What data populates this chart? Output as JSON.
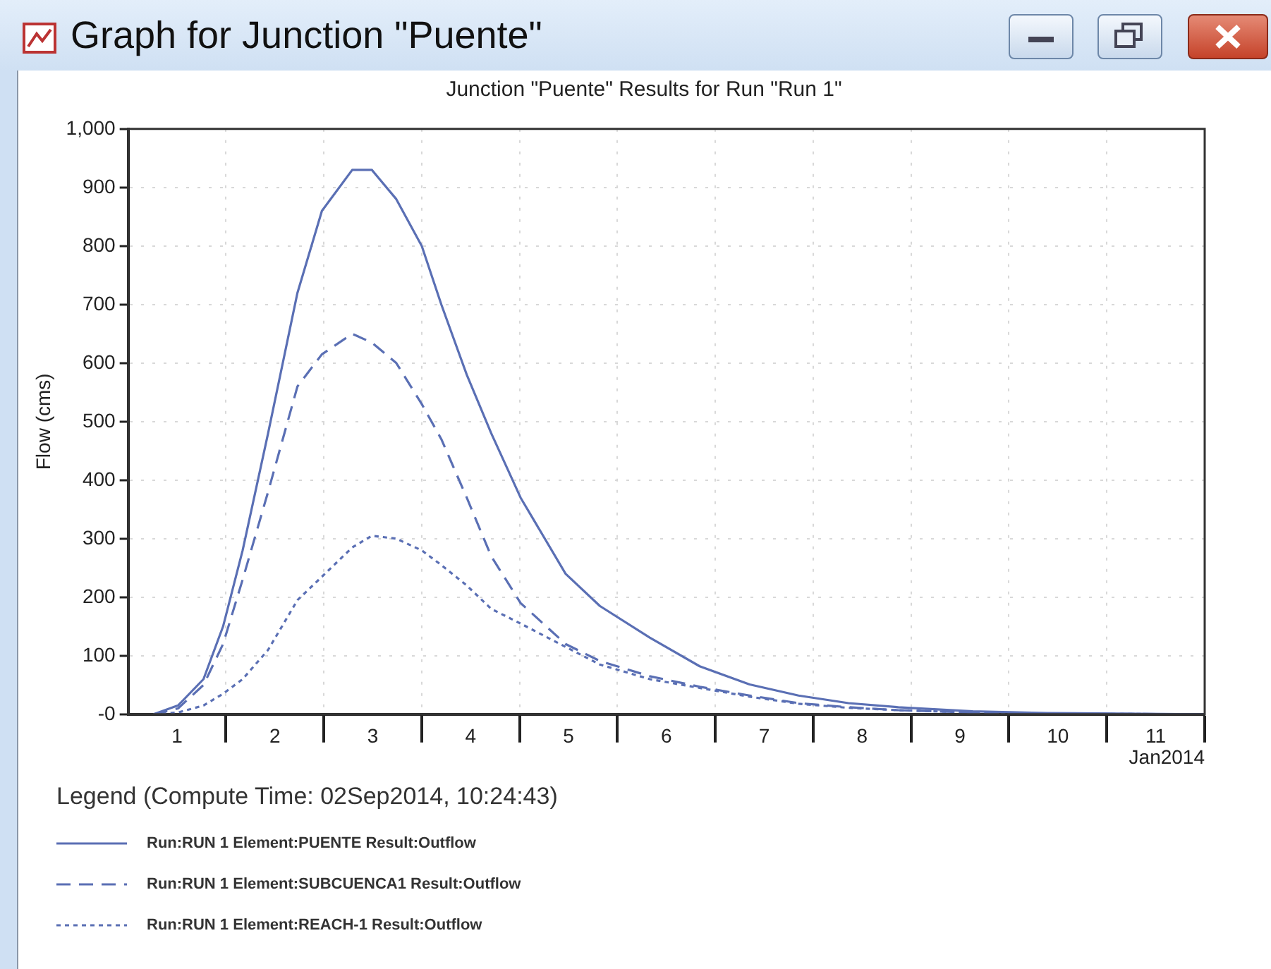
{
  "chart_data": {
    "type": "line",
    "title": "Graph for Junction \"Puente\"",
    "subtitle": "Junction \"Puente\" Results for Run \"Run 1\"",
    "xlabel": "Jan2014",
    "ylabel": "Flow (cms)",
    "legend_title": "Legend (Compute Time: 02Sep2014, 10:24:43)",
    "legend": "bottom",
    "x": [
      1.26,
      1.51,
      1.77,
      1.97,
      2.17,
      2.43,
      2.73,
      2.98,
      3.29,
      3.49,
      3.74,
      4.0,
      4.2,
      4.46,
      4.71,
      5.01,
      5.47,
      5.82,
      6.33,
      6.84,
      7.35,
      7.85,
      8.36,
      8.87,
      9.63,
      10.39,
      12
    ],
    "series": [
      {
        "name": "Run:RUN 1 Element:PUENTE Result:Outflow",
        "color": "#5a6fb4",
        "line_style": "solid",
        "values": [
          0,
          15,
          60,
          150,
          280,
          480,
          720,
          860,
          930,
          930,
          880,
          800,
          700,
          580,
          480,
          370,
          240,
          185,
          131,
          82,
          51,
          32,
          19,
          12,
          5,
          2,
          0
        ]
      },
      {
        "name": "Run:RUN 1 Element:SUBCUENCA1 Result:Outflow",
        "color": "#5a6fb4",
        "line_style": "dashed",
        "values": [
          0,
          10,
          50,
          120,
          230,
          380,
          560,
          615,
          650,
          635,
          600,
          530,
          470,
          370,
          270,
          190,
          120,
          91,
          65,
          47,
          32,
          19,
          12,
          7,
          3,
          1,
          0
        ]
      },
      {
        "name": "Run:RUN 1 Element:REACH-1 Result:Outflow",
        "color": "#5a6fb4",
        "line_style": "dotted",
        "values": [
          0,
          3,
          15,
          35,
          60,
          110,
          195,
          235,
          285,
          305,
          300,
          280,
          255,
          220,
          180,
          155,
          115,
          85,
          60,
          45,
          30,
          18,
          11,
          7,
          3,
          1,
          0
        ]
      }
    ],
    "xlim": [
      1,
      12
    ],
    "xticks": [
      {
        "value": 1.5,
        "label": "1"
      },
      {
        "value": 2,
        "label": null
      },
      {
        "value": 2.5,
        "label": "2"
      },
      {
        "value": 3,
        "label": null
      },
      {
        "value": 3.5,
        "label": "3"
      },
      {
        "value": 4,
        "label": null
      },
      {
        "value": 4.5,
        "label": "4"
      },
      {
        "value": 5,
        "label": null
      },
      {
        "value": 5.5,
        "label": "5"
      },
      {
        "value": 6,
        "label": null
      },
      {
        "value": 6.5,
        "label": "6"
      },
      {
        "value": 7,
        "label": null
      },
      {
        "value": 7.5,
        "label": "7"
      },
      {
        "value": 8,
        "label": null
      },
      {
        "value": 8.5,
        "label": "8"
      },
      {
        "value": 9,
        "label": null
      },
      {
        "value": 9.5,
        "label": "9"
      },
      {
        "value": 10,
        "label": null
      },
      {
        "value": 10.5,
        "label": "10"
      },
      {
        "value": 11,
        "label": null
      },
      {
        "value": 11.5,
        "label": "11"
      },
      {
        "value": 12,
        "label": null
      }
    ],
    "ylim": [
      0,
      1000
    ],
    "yticks": [
      {
        "value": 0,
        "label": "-0"
      },
      100,
      200,
      300,
      400,
      500,
      600,
      700,
      800,
      900,
      {
        "value": 1000,
        "label": "1,000"
      }
    ],
    "grid": true
  }
}
